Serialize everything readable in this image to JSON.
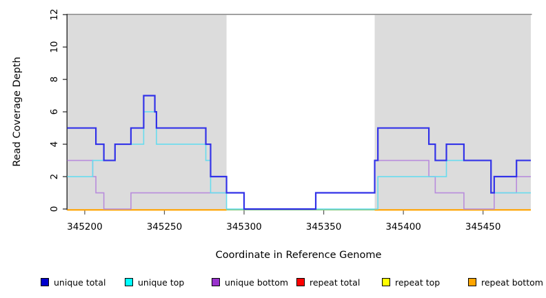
{
  "chart_data": {
    "type": "step-line",
    "title": "",
    "xlabel": "Coordinate in Reference Genome",
    "ylabel": "Read Coverage Depth",
    "xlim": [
      345189,
      345480
    ],
    "ylim": [
      0,
      12
    ],
    "xticks": [
      "345200",
      "345250",
      "345300",
      "345350",
      "345400",
      "345450"
    ],
    "xtick_values": [
      345200,
      345250,
      345300,
      345350,
      345400,
      345450
    ],
    "yticks": [
      0,
      2,
      4,
      6,
      8,
      10,
      12
    ],
    "grid": false,
    "legend_position": "bottom",
    "background_bands": {
      "color": "#DCDCDC",
      "regions": [
        [
          345189,
          345289
        ],
        [
          345382,
          345480
        ]
      ]
    },
    "top_border_color": "#8C8C8C",
    "axis_color": "#1a1a1a",
    "series": [
      {
        "name": "unique total",
        "legend_color": "#0000CC",
        "line_color": "#3232E8",
        "line_width": 2.2,
        "steps": [
          [
            345189,
            5
          ],
          [
            345207,
            4
          ],
          [
            345212,
            3
          ],
          [
            345219,
            4
          ],
          [
            345229,
            5
          ],
          [
            345237,
            7
          ],
          [
            345244,
            6
          ],
          [
            345245,
            5
          ],
          [
            345276,
            4
          ],
          [
            345279,
            2
          ],
          [
            345289,
            1
          ],
          [
            345300,
            0
          ],
          [
            345345,
            1
          ],
          [
            345382,
            3
          ],
          [
            345384,
            5
          ],
          [
            345416,
            4
          ],
          [
            345420,
            3
          ],
          [
            345427,
            4
          ],
          [
            345438,
            3
          ],
          [
            345455,
            1
          ],
          [
            345457,
            2
          ],
          [
            345471,
            3
          ]
        ]
      },
      {
        "name": "unique top",
        "legend_color": "#00FFFF",
        "line_color": "#68DCEE",
        "line_width": 1.6,
        "steps": [
          [
            345189,
            2
          ],
          [
            345205,
            3
          ],
          [
            345219,
            4
          ],
          [
            345237,
            6
          ],
          [
            345245,
            4
          ],
          [
            345276,
            3
          ],
          [
            345279,
            1
          ],
          [
            345289,
            0
          ],
          [
            345384,
            2
          ],
          [
            345427,
            3
          ],
          [
            345455,
            1
          ]
        ]
      },
      {
        "name": "unique bottom",
        "legend_color": "#9932CC",
        "line_color": "#B88CDC",
        "line_width": 1.6,
        "steps": [
          [
            345189,
            3
          ],
          [
            345205,
            2
          ],
          [
            345207,
            1
          ],
          [
            345212,
            0
          ],
          [
            345229,
            1
          ],
          [
            345300,
            0
          ],
          [
            345345,
            1
          ],
          [
            345382,
            3
          ],
          [
            345416,
            2
          ],
          [
            345420,
            1
          ],
          [
            345438,
            0
          ],
          [
            345457,
            1
          ],
          [
            345471,
            2
          ]
        ]
      },
      {
        "name": "repeat total",
        "legend_color": "#FF0000",
        "line_color": "#FF0000",
        "line_width": 1.6,
        "steps": [
          [
            345189,
            0
          ]
        ]
      },
      {
        "name": "repeat top",
        "legend_color": "#FFFF00",
        "line_color": "#FFFF00",
        "line_width": 1.6,
        "steps": [
          [
            345189,
            0
          ]
        ]
      },
      {
        "name": "repeat bottom",
        "legend_color": "#FFA500",
        "line_color": "#FFA500",
        "line_width": 2,
        "steps": [
          [
            345189,
            0
          ]
        ],
        "visible_regions": [
          [
            345189,
            345289
          ],
          [
            345382,
            345480
          ]
        ]
      }
    ],
    "overlap_line": {
      "color": "#82C87D",
      "value": 0,
      "region": [
        345289,
        345382
      ]
    }
  }
}
